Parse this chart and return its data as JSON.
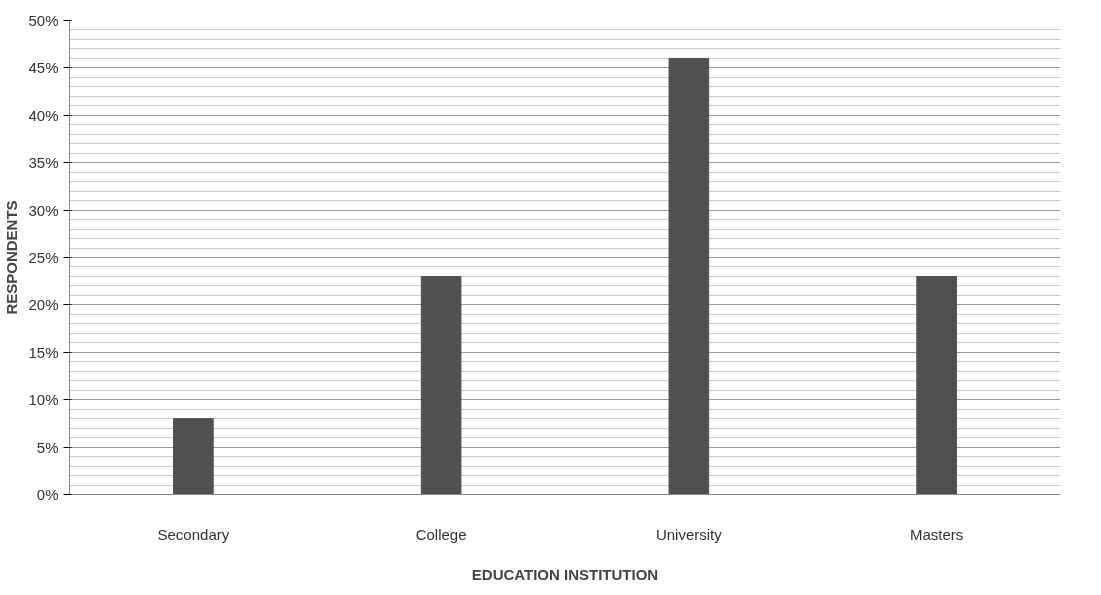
{
  "chart_data": {
    "type": "bar",
    "xlabel": "EDUCATION INSTITUTION",
    "ylabel": "RESPONDENTS",
    "categories": [
      "Secondary",
      "College",
      "University",
      "Masters"
    ],
    "values": [
      8,
      23,
      46,
      23
    ],
    "color": "#505050",
    "ylim": [
      0,
      50
    ],
    "yticks": [
      {
        "value": 0,
        "label": "0%"
      },
      {
        "value": 5,
        "label": "5%"
      },
      {
        "value": 10,
        "label": "10%"
      },
      {
        "value": 15,
        "label": "15%"
      },
      {
        "value": 20,
        "label": "20%"
      },
      {
        "value": 25,
        "label": "25%"
      },
      {
        "value": 30,
        "label": "30%"
      },
      {
        "value": 35,
        "label": "35%"
      },
      {
        "value": 40,
        "label": "40%"
      },
      {
        "value": 45,
        "label": "45%"
      },
      {
        "value": 50,
        "label": "50%"
      }
    ],
    "grid": "y"
  }
}
